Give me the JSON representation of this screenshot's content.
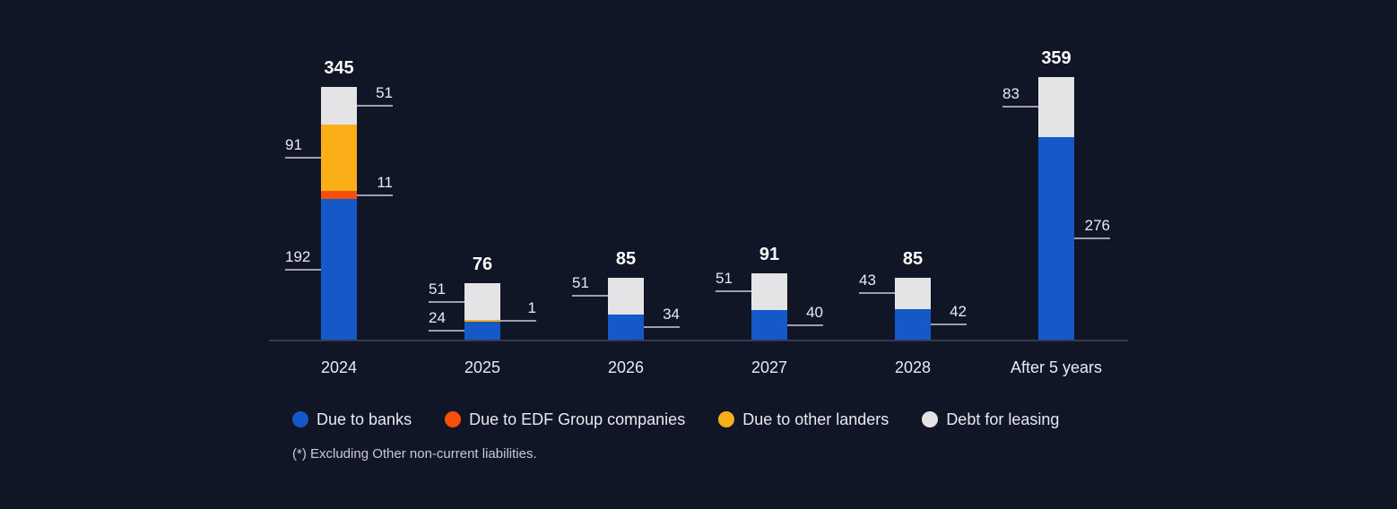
{
  "chart_data": {
    "type": "bar",
    "stacked": true,
    "title": "",
    "categories": [
      "2024",
      "2025",
      "2026",
      "2027",
      "2028",
      "After 5 years"
    ],
    "series": [
      {
        "name": "Due to banks",
        "color": "#1559C8",
        "values": [
          192,
          24,
          34,
          40,
          42,
          276
        ]
      },
      {
        "name": "Due to EDF Group companies",
        "color": "#FA4E0C",
        "values": [
          11,
          0,
          0,
          0,
          0,
          0
        ]
      },
      {
        "name": "Due to other landers",
        "color": "#FBAE17",
        "values": [
          91,
          1,
          0,
          0,
          0,
          0
        ]
      },
      {
        "name": "Debt for leasing",
        "color": "#E4E4E6",
        "values": [
          51,
          51,
          51,
          51,
          43,
          83
        ]
      }
    ],
    "totals": [
      345,
      76,
      85,
      91,
      85,
      359
    ],
    "callouts": [
      [
        {
          "value": 192,
          "series": 0,
          "side": "left"
        },
        {
          "value": 91,
          "series": 2,
          "side": "left"
        },
        {
          "value": 11,
          "series": 1,
          "side": "right"
        },
        {
          "value": 51,
          "series": 3,
          "side": "right"
        }
      ],
      [
        {
          "value": 51,
          "series": 3,
          "side": "left"
        },
        {
          "value": 24,
          "series": 0,
          "side": "left"
        },
        {
          "value": 1,
          "series": 2,
          "side": "right"
        }
      ],
      [
        {
          "value": 51,
          "series": 3,
          "side": "left"
        },
        {
          "value": 34,
          "series": 0,
          "side": "right"
        }
      ],
      [
        {
          "value": 51,
          "series": 3,
          "side": "left"
        },
        {
          "value": 40,
          "series": 0,
          "side": "right"
        }
      ],
      [
        {
          "value": 43,
          "series": 3,
          "side": "left"
        },
        {
          "value": 42,
          "series": 0,
          "side": "right"
        }
      ],
      [
        {
          "value": 83,
          "series": 3,
          "side": "left"
        },
        {
          "value": 276,
          "series": 0,
          "side": "right"
        }
      ]
    ],
    "legend_position": "bottom",
    "grid": false,
    "ylim": [
      0,
      359
    ],
    "xlabel": "",
    "ylabel": "",
    "footnote": "(*) Excluding Other non-current liabilities.",
    "colors": {
      "background": "#111627",
      "axis_line": "#343A52",
      "leader_line": "#9BA0AC",
      "label_text": "#E9EAEF",
      "total_text": "#FFFFFF",
      "footnote_text": "#C8CAD3"
    }
  }
}
